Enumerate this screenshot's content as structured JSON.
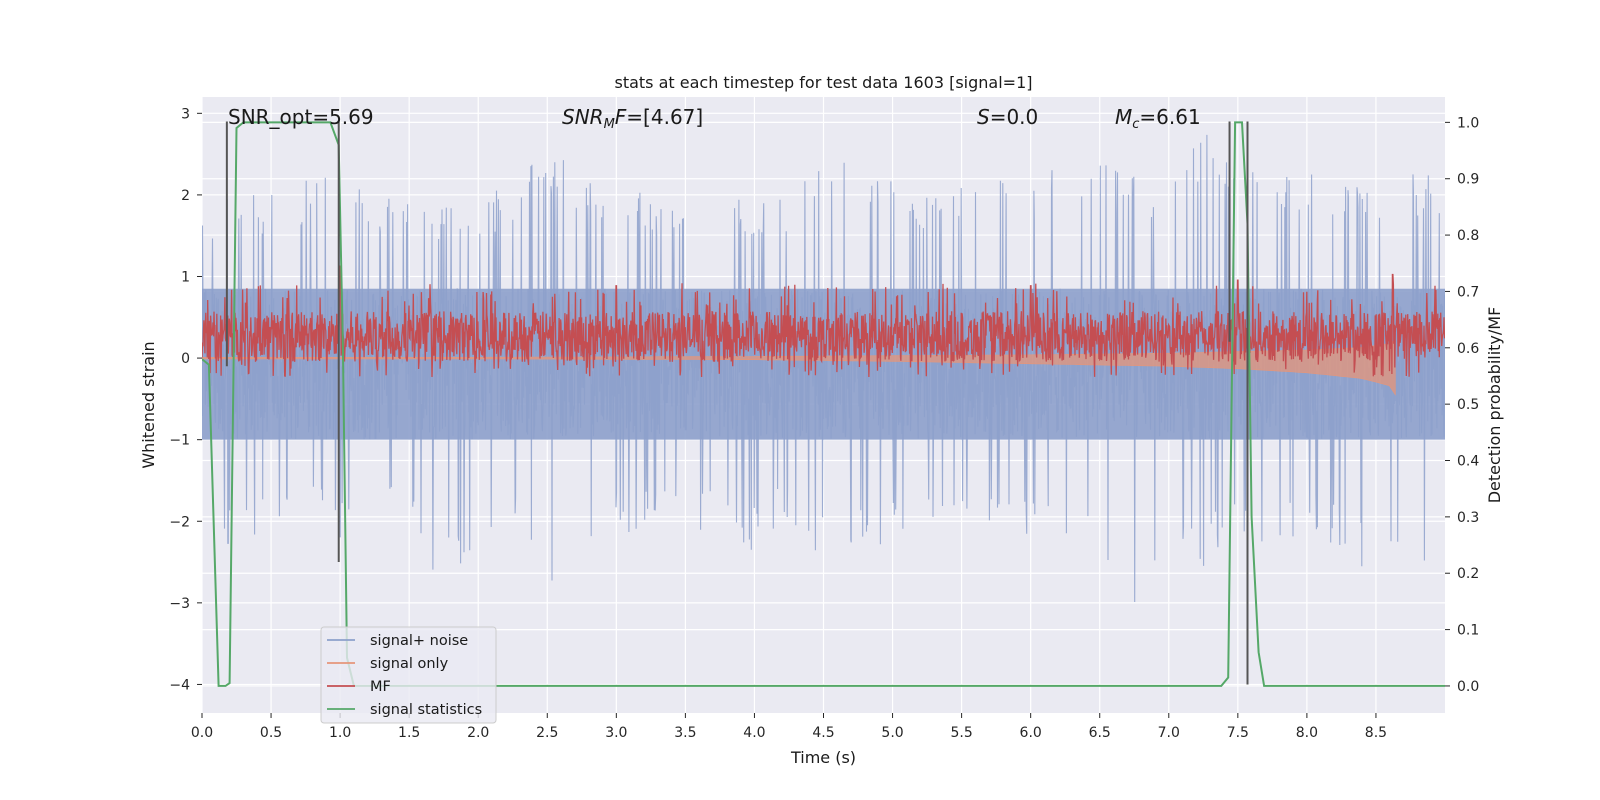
{
  "chart_data": {
    "type": "line",
    "title": "stats at each timestep for test data 1603 [signal=1]",
    "xlabel": "Time (s)",
    "ylabel": "Whitened strain",
    "y2label": "Detection probability/MF",
    "xlim": [
      0,
      9
    ],
    "ylim": [
      -4.35,
      3.2
    ],
    "y2lim": [
      -0.048,
      1.045
    ],
    "x_ticks": [
      "0.0",
      "0.5",
      "1.0",
      "1.5",
      "2.0",
      "2.5",
      "3.0",
      "3.5",
      "4.0",
      "4.5",
      "5.0",
      "5.5",
      "6.0",
      "6.5",
      "7.0",
      "7.5",
      "8.0",
      "8.5"
    ],
    "y_ticks": [
      "3",
      "2",
      "1",
      "0",
      "−1",
      "−2",
      "−3",
      "−4"
    ],
    "y2_ticks": [
      "1.0",
      "0.9",
      "0.8",
      "0.7",
      "0.6",
      "0.5",
      "0.4",
      "0.3",
      "0.2",
      "0.1",
      "0.0"
    ],
    "grid": true,
    "legend_position": "lower-left",
    "annotations": [
      {
        "id": "snr-opt",
        "prefix": "SNR_opt=5.69",
        "sub": "",
        "suffix": "",
        "italic": false
      },
      {
        "id": "snr-mf",
        "prefix": "SNR",
        "sub": "M",
        "suffix": "F=[4.67]",
        "italic": true
      },
      {
        "id": "s-stat",
        "prefix": "S",
        "sub": "",
        "suffix": "=0.0",
        "italic": true
      },
      {
        "id": "mc",
        "prefix": "M",
        "sub": "c",
        "suffix": "=6.61",
        "italic": true
      }
    ],
    "series": [
      {
        "name": "signal+ noise",
        "color": "#8da0cb",
        "axis": "left",
        "style": "band",
        "envelope_x": [
          0.0,
          0.25,
          0.5,
          0.75,
          1.0,
          1.25,
          1.5,
          1.75,
          2.0,
          2.25,
          2.5,
          2.75,
          3.0,
          3.25,
          3.5,
          3.75,
          4.0,
          4.25,
          4.5,
          4.75,
          5.0,
          5.25,
          5.5,
          5.75,
          6.0,
          6.25,
          6.5,
          6.75,
          7.0,
          7.25,
          7.5,
          7.75,
          8.0,
          8.25,
          8.5,
          8.75,
          9.0
        ],
        "envelope_upper": [
          1.7,
          2.1,
          2.0,
          2.2,
          2.6,
          1.8,
          2.2,
          1.9,
          2.0,
          2.1,
          2.6,
          2.3,
          2.3,
          1.9,
          2.0,
          2.1,
          1.9,
          2.0,
          2.4,
          2.5,
          2.4,
          2.0,
          2.2,
          2.3,
          2.2,
          2.5,
          2.4,
          2.3,
          2.2,
          3.0,
          2.2,
          2.4,
          2.3,
          2.1,
          2.2,
          2.3,
          2.2
        ],
        "envelope_lower": [
          -2.6,
          -2.2,
          -2.2,
          -2.0,
          -2.2,
          -2.0,
          -2.2,
          -2.9,
          -2.2,
          -2.0,
          -2.8,
          -2.4,
          -2.2,
          -2.1,
          -2.1,
          -2.2,
          -2.4,
          -2.0,
          -2.5,
          -2.3,
          -2.3,
          -2.1,
          -2.2,
          -2.0,
          -2.2,
          -2.2,
          -2.4,
          -3.2,
          -2.8,
          -2.6,
          -2.1,
          -2.7,
          -2.0,
          -2.5,
          -2.8,
          -2.5,
          -2.6
        ],
        "core_upper": 0.85,
        "core_lower": -1.0
      },
      {
        "name": "signal only",
        "color": "#e5967a",
        "axis": "left",
        "style": "chirp",
        "envelope_x": [
          0.0,
          2.0,
          4.0,
          5.0,
          6.0,
          7.0,
          7.5,
          8.0,
          8.4,
          8.6,
          8.64
        ],
        "envelope_upper": [
          0.01,
          0.01,
          0.02,
          0.03,
          0.04,
          0.06,
          0.08,
          0.1,
          0.13,
          0.18,
          0.22
        ],
        "envelope_lower": [
          -0.01,
          -0.01,
          -0.02,
          -0.04,
          -0.07,
          -0.1,
          -0.13,
          -0.18,
          -0.25,
          -0.34,
          -0.45
        ]
      },
      {
        "name": "MF",
        "color": "#c44e52",
        "axis": "right",
        "style": "noise",
        "baseline": 0.62,
        "spread": 0.045,
        "peaks": [
          [
            1.0,
            0.745
          ],
          [
            3.0,
            0.71
          ],
          [
            6.0,
            0.71
          ],
          [
            7.5,
            0.72
          ],
          [
            8.62,
            0.73
          ]
        ]
      },
      {
        "name": "signal statistics",
        "color": "#55a868",
        "axis": "right",
        "style": "line",
        "x": [
          0.0,
          0.05,
          0.12,
          0.17,
          0.2,
          0.25,
          0.3,
          0.5,
          0.7,
          0.93,
          0.99,
          1.02,
          1.05,
          1.1,
          2.0,
          4.0,
          6.0,
          7.0,
          7.38,
          7.43,
          7.48,
          7.53,
          7.57,
          7.6,
          7.65,
          7.69,
          7.75,
          8.0,
          8.5,
          9.0
        ],
        "y": [
          0.58,
          0.57,
          0.0,
          0.0,
          0.005,
          0.99,
          1.0,
          1.0,
          1.0,
          1.0,
          0.96,
          0.6,
          0.05,
          0.0,
          0.0,
          0.0,
          0.0,
          0.0,
          0.0,
          0.015,
          1.0,
          1.0,
          0.82,
          0.3,
          0.06,
          0.0,
          0.0,
          0.0,
          0.0,
          0.0
        ]
      }
    ],
    "vertical_markers": [
      {
        "x": 0.18,
        "top": 2.9,
        "bottom": -0.1,
        "color": "#555555"
      },
      {
        "x": 0.99,
        "top": 2.9,
        "bottom": -2.5,
        "color": "#555555"
      },
      {
        "x": 7.44,
        "top": 2.9,
        "bottom": 0.2,
        "color": "#555555"
      },
      {
        "x": 7.57,
        "top": 2.9,
        "bottom": -4.0,
        "color": "#555555"
      }
    ],
    "x_min_grid": [
      0.0,
      0.5,
      1.0,
      1.5,
      2.0,
      2.5,
      3.0,
      3.5,
      4.0,
      4.5,
      5.0,
      5.5,
      6.0,
      6.5,
      7.0,
      7.5,
      8.0,
      8.5
    ]
  }
}
